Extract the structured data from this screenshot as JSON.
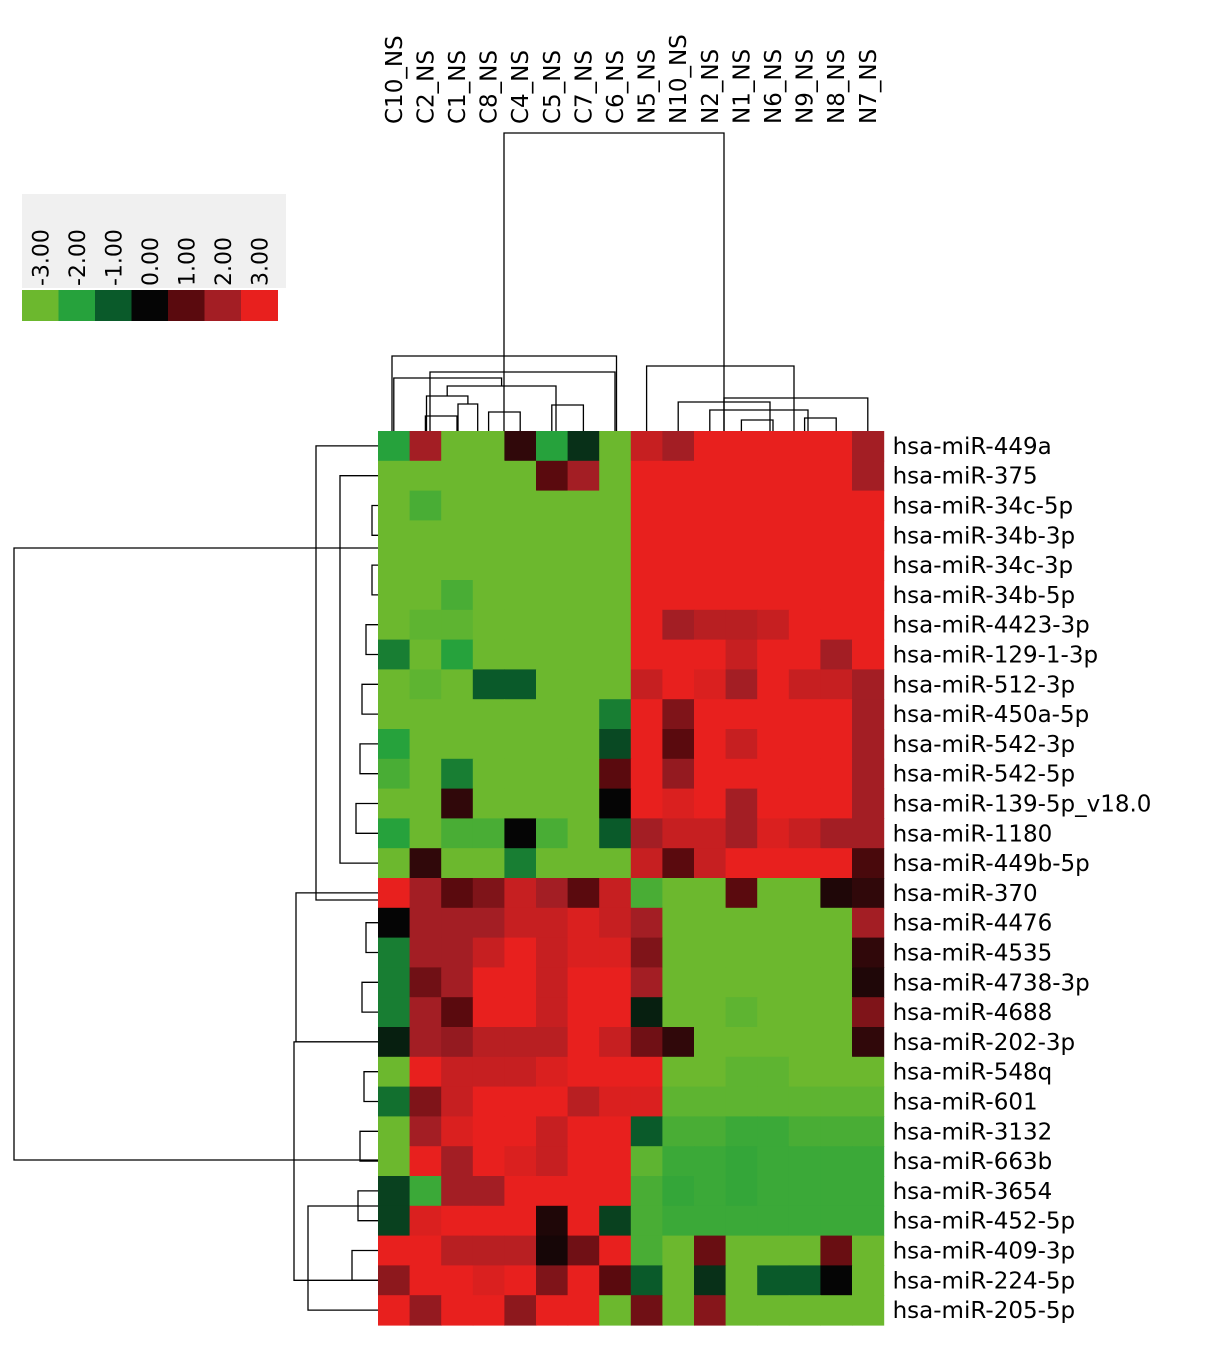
{
  "chart_data": {
    "type": "heatmap",
    "columns": [
      "C10_NS",
      "C2_NS",
      "C1_NS",
      "C8_NS",
      "C4_NS",
      "C5_NS",
      "C7_NS",
      "C6_NS",
      "N5_NS",
      "N10_NS",
      "N2_NS",
      "N1_NS",
      "N6_NS",
      "N9_NS",
      "N8_NS",
      "N7_NS"
    ],
    "rows": [
      "hsa-miR-449a",
      "hsa-miR-375",
      "hsa-miR-34c-5p",
      "hsa-miR-34b-3p",
      "hsa-miR-34c-3p",
      "hsa-miR-34b-5p",
      "hsa-miR-4423-3p",
      "hsa-miR-129-1-3p",
      "hsa-miR-512-3p",
      "hsa-miR-450a-5p",
      "hsa-miR-542-3p",
      "hsa-miR-542-5p",
      "hsa-miR-139-5p_v18.0",
      "hsa-miR-1180",
      "hsa-miR-449b-5p",
      "hsa-miR-370",
      "hsa-miR-4476",
      "hsa-miR-4535",
      "hsa-miR-4738-3p",
      "hsa-miR-4688",
      "hsa-miR-202-3p",
      "hsa-miR-548q",
      "hsa-miR-601",
      "hsa-miR-3132",
      "hsa-miR-663b",
      "hsa-miR-3654",
      "hsa-miR-452-5p",
      "hsa-miR-409-3p",
      "hsa-miR-224-5p",
      "hsa-miR-205-5p"
    ],
    "values": [
      [
        -2,
        2,
        -3,
        -3,
        0.5,
        -2,
        -0.5,
        -3,
        2.5,
        2,
        3,
        3,
        3,
        3,
        3,
        2
      ],
      [
        -3,
        -3,
        -3,
        -3,
        -3,
        1,
        2,
        -3,
        3,
        3,
        3,
        3,
        3,
        3,
        3,
        2
      ],
      [
        -3,
        -2.5,
        -3,
        -3,
        -3,
        -3,
        -3,
        -3,
        3,
        3,
        3,
        3,
        3,
        3,
        3,
        3
      ],
      [
        -3,
        -3,
        -3,
        -3,
        -3,
        -3,
        -3,
        -3,
        3,
        3,
        3,
        3,
        3,
        3,
        3,
        3
      ],
      [
        -3,
        -3,
        -3,
        -3,
        -3,
        -3,
        -3,
        -3,
        3,
        3,
        3,
        3,
        3,
        3,
        3,
        3
      ],
      [
        -3,
        -3,
        -2.5,
        -3,
        -3,
        -3,
        -3,
        -3,
        3,
        3,
        3,
        3,
        3,
        3,
        3,
        3
      ],
      [
        -3,
        -2.8,
        -2.8,
        -3,
        -3,
        -3,
        -3,
        -3,
        3,
        2,
        2.3,
        2.3,
        2.5,
        3,
        3,
        3
      ],
      [
        -1.5,
        -3,
        -2,
        -3,
        -3,
        -3,
        -3,
        -3,
        3,
        3,
        3,
        2.5,
        3,
        3,
        2,
        3
      ],
      [
        -3,
        -2.8,
        -3,
        -1,
        -1,
        -3,
        -3,
        -3,
        2.5,
        3,
        2.8,
        2,
        3,
        2.5,
        2.5,
        2
      ],
      [
        -3,
        -3,
        -3,
        -3,
        -3,
        -3,
        -3,
        -1.5,
        3,
        1.5,
        3,
        3,
        3,
        3,
        3,
        2
      ],
      [
        -2,
        -3,
        -3,
        -3,
        -3,
        -3,
        -3,
        -0.8,
        3,
        1,
        3,
        2.5,
        3,
        3,
        3,
        2
      ],
      [
        -2.5,
        -3,
        -1.5,
        -3,
        -3,
        -3,
        -3,
        1,
        3,
        1.8,
        3,
        3,
        3,
        3,
        3,
        2
      ],
      [
        -3,
        -3,
        0.5,
        -3,
        -3,
        -3,
        -3,
        0,
        3,
        2.8,
        3,
        2,
        3,
        3,
        3,
        2
      ],
      [
        -2,
        -3,
        -2.5,
        -2.5,
        0,
        -2.5,
        -3,
        -1,
        2,
        2.5,
        2.5,
        2,
        2.8,
        2.5,
        2,
        2
      ],
      [
        -3,
        0.5,
        -3,
        -3,
        -1.5,
        -3,
        -3,
        -3,
        2.5,
        1,
        2.5,
        3,
        3,
        3,
        3,
        0.8
      ],
      [
        3,
        2,
        1,
        1.5,
        2.5,
        2,
        1,
        2.5,
        -2.5,
        -3,
        -3,
        1,
        -3,
        -3,
        0.3,
        0.5
      ],
      [
        0,
        2,
        2,
        2,
        2.5,
        2.5,
        2.8,
        2.5,
        2,
        -3,
        -3,
        -3,
        -3,
        -3,
        -3,
        2
      ],
      [
        -1.5,
        2,
        2,
        2.5,
        3,
        2.5,
        2.8,
        2.8,
        1.5,
        -3,
        -3,
        -3,
        -3,
        -3,
        -3,
        0.5
      ],
      [
        -1.5,
        1.3,
        2,
        3,
        3,
        2.5,
        3,
        3,
        2,
        -3,
        -3,
        -3,
        -3,
        -3,
        -3,
        0.3
      ],
      [
        -1.5,
        2,
        1,
        3,
        3,
        2.5,
        3,
        3,
        -0.3,
        -3,
        -3,
        -2.8,
        -3,
        -3,
        -3,
        1.5
      ],
      [
        -0.3,
        2,
        1.8,
        2.3,
        2.3,
        2.3,
        3,
        2.5,
        1.3,
        0.5,
        -3,
        -3,
        -3,
        -3,
        -3,
        0.5
      ],
      [
        -3,
        3,
        2.5,
        2.5,
        2.5,
        2.8,
        3,
        3,
        3,
        -3,
        -3,
        -2.8,
        -2.8,
        -3,
        -3,
        -3
      ],
      [
        -1.3,
        1.5,
        2.5,
        3,
        3,
        3,
        2.3,
        2.8,
        2.8,
        -2.8,
        -2.8,
        -2.8,
        -2.8,
        -2.8,
        -2.8,
        -2.8
      ],
      [
        -3,
        2,
        2.8,
        3,
        3,
        2.5,
        3,
        3,
        -1,
        -2.5,
        -2.5,
        -2.3,
        -2.3,
        -2.5,
        -2.5,
        -2.5
      ],
      [
        -3,
        3,
        2,
        3,
        2.8,
        2.5,
        3,
        3,
        -2.8,
        -2.3,
        -2.3,
        -2.2,
        -2.3,
        -2.3,
        -2.3,
        -2.3
      ],
      [
        -0.7,
        -2.3,
        2,
        2,
        3,
        3,
        3,
        3,
        -2.5,
        -2.2,
        -2.3,
        -2.2,
        -2.3,
        -2.3,
        -2.3,
        -2.3
      ],
      [
        -0.7,
        2.8,
        3,
        3,
        3,
        0.3,
        3,
        -0.7,
        -2.5,
        -2.3,
        -2.3,
        -2.3,
        -2.3,
        -2.3,
        -2.3,
        -2.3
      ],
      [
        3,
        3,
        2.3,
        2.3,
        2.3,
        0.2,
        1.3,
        3,
        -2.5,
        -3,
        1.2,
        -3,
        -3,
        -3,
        1.2,
        -3
      ],
      [
        1.7,
        3,
        3,
        2.8,
        3,
        1.5,
        3,
        1,
        -1,
        -3,
        -0.5,
        -3,
        -1,
        -1,
        0,
        -3
      ],
      [
        3,
        1.8,
        3,
        3,
        1.7,
        3,
        3,
        -3,
        1.3,
        -3,
        1.6,
        -3,
        -3,
        -3,
        -3,
        -3
      ]
    ],
    "scale": {
      "min": -3,
      "max": 3,
      "stops": [
        -3,
        -2,
        -1,
        0,
        1,
        2,
        3
      ],
      "tick_labels": [
        "-3.00",
        "-2.00",
        "-1.00",
        "0.00",
        "1.00",
        "2.00",
        "3.00"
      ],
      "colors": [
        "#6cb82e",
        "#26a23c",
        "#0a5a2a",
        "#050505",
        "#5a0a0e",
        "#a31e24",
        "#e8201e"
      ]
    },
    "column_dendrogram": true,
    "row_dendrogram": true,
    "legend_placement": "top-left"
  }
}
